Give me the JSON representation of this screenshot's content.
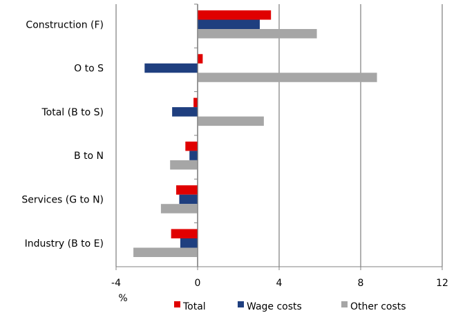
{
  "chart_data": {
    "type": "bar",
    "orientation": "horizontal",
    "categories": [
      "Construction (F)",
      "O to S",
      "Total (B to S)",
      "B to N",
      "Services (G to N)",
      "Industry (B to E)"
    ],
    "series": [
      {
        "name": "Total",
        "color": "#e00000",
        "values": [
          3.6,
          0.25,
          -0.2,
          -0.6,
          -1.05,
          -1.3
        ]
      },
      {
        "name": "Wage costs",
        "color": "#1f3f7f",
        "values": [
          3.05,
          -2.6,
          -1.25,
          -0.4,
          -0.9,
          -0.85
        ]
      },
      {
        "name": "Other costs",
        "color": "#a6a6a6",
        "values": [
          5.85,
          8.8,
          3.25,
          -1.35,
          -1.8,
          -3.15
        ]
      }
    ],
    "xlim": [
      -4,
      12
    ],
    "x_ticks": [
      "-4",
      "0",
      "4",
      "8",
      "12"
    ],
    "xlabel": "%",
    "grid": "vertical",
    "legend_position": "bottom"
  }
}
